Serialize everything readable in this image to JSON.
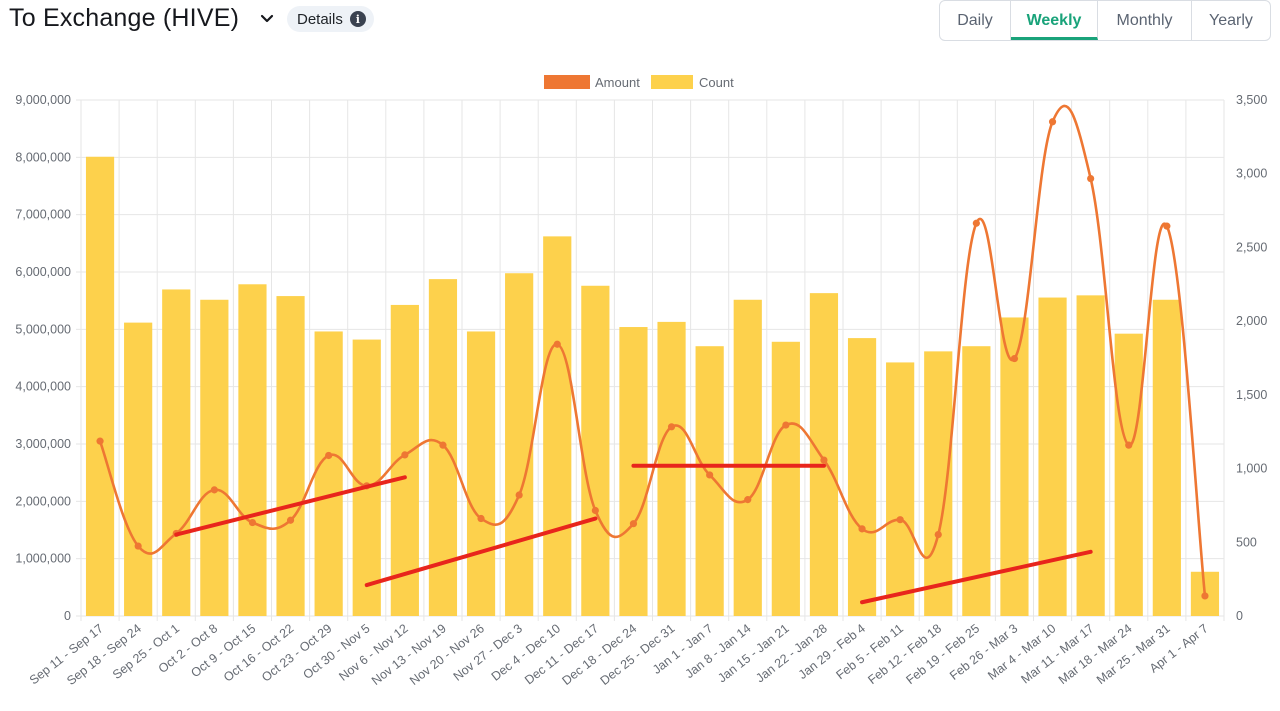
{
  "header": {
    "title": "To Exchange (HIVE)",
    "details_label": "Details",
    "info_icon_glyph": "i"
  },
  "tabs": [
    {
      "label": "Daily",
      "active": false
    },
    {
      "label": "Weekly",
      "active": true
    },
    {
      "label": "Monthly",
      "active": false
    },
    {
      "label": "Yearly",
      "active": false
    }
  ],
  "colors": {
    "amount": "#ee7733",
    "count": "#fdd14c",
    "annotation": "#e8251c",
    "grid": "#e6e6e6",
    "accent": "#19a37a"
  },
  "chart_data": {
    "type": "bar",
    "categories": [
      "Sep 11 - Sep 17",
      "Sep 18 - Sep 24",
      "Sep 25 - Oct 1",
      "Oct 2 - Oct 8",
      "Oct 9 - Oct 15",
      "Oct 16 - Oct 22",
      "Oct 23 - Oct 29",
      "Oct 30 - Nov 5",
      "Nov 6 - Nov 12",
      "Nov 13 - Nov 19",
      "Nov 20 - Nov 26",
      "Nov 27 - Dec 3",
      "Dec 4 - Dec 10",
      "Dec 11 - Dec 17",
      "Dec 18 - Dec 24",
      "Dec 25 - Dec 31",
      "Jan 1 - Jan 7",
      "Jan 8 - Jan 14",
      "Jan 15 - Jan 21",
      "Jan 22 - Jan 28",
      "Jan 29 - Feb 4",
      "Feb 5 - Feb 11",
      "Feb 12 - Feb 18",
      "Feb 19 - Feb 25",
      "Feb 26 - Mar 3",
      "Mar 4 - Mar 10",
      "Mar 11 - Mar 17",
      "Mar 18 - Mar 24",
      "Mar 25 - Mar 31",
      "Apr 1 - Apr 7"
    ],
    "series": [
      {
        "name": "Amount",
        "type": "line",
        "axis": "left",
        "values": [
          3050000,
          1220000,
          1440000,
          2200000,
          1630000,
          1670000,
          2800000,
          2270000,
          2810000,
          2980000,
          1700000,
          2110000,
          4740000,
          1840000,
          1610000,
          3300000,
          2460000,
          2030000,
          3330000,
          2720000,
          1520000,
          1680000,
          1420000,
          6850000,
          4490000,
          8620000,
          7630000,
          2980000,
          6800000,
          350000
        ]
      },
      {
        "name": "Count",
        "type": "bar",
        "axis": "right",
        "values": [
          3115,
          1990,
          2215,
          2145,
          2250,
          2170,
          1930,
          1875,
          2110,
          2285,
          1930,
          2325,
          2575,
          2240,
          1960,
          1995,
          1830,
          2145,
          1860,
          2190,
          1885,
          1720,
          1795,
          1830,
          2025,
          2160,
          2175,
          1915,
          2145,
          300
        ]
      }
    ],
    "y_left": {
      "min": 0,
      "max": 9000000,
      "ticks": [
        "0",
        "1,000,000",
        "2,000,000",
        "3,000,000",
        "4,000,000",
        "5,000,000",
        "6,000,000",
        "7,000,000",
        "8,000,000",
        "9,000,000"
      ]
    },
    "y_right": {
      "min": 0,
      "max": 3500,
      "ticks": [
        "0",
        "500",
        "1,000",
        "1,500",
        "2,000",
        "2,500",
        "3,000",
        "3,500"
      ]
    },
    "legend": {
      "position": "top-center",
      "entries": [
        "Amount",
        "Count"
      ]
    },
    "grid": true,
    "annotations": [
      {
        "from": [
          "Sep 25 - Oct 1",
          1420000
        ],
        "to": [
          "Nov 6 - Nov 12",
          2420000
        ]
      },
      {
        "from": [
          "Oct 30 - Nov 5",
          540000
        ],
        "to": [
          "Dec 11 - Dec 17",
          1700000
        ]
      },
      {
        "from": [
          "Dec 18 - Dec 24",
          2620000
        ],
        "to": [
          "Jan 22 - Jan 28",
          2620000
        ]
      },
      {
        "from": [
          "Jan 29 - Feb 4",
          240000
        ],
        "to": [
          "Mar 11 - Mar 17",
          1120000
        ]
      }
    ]
  }
}
